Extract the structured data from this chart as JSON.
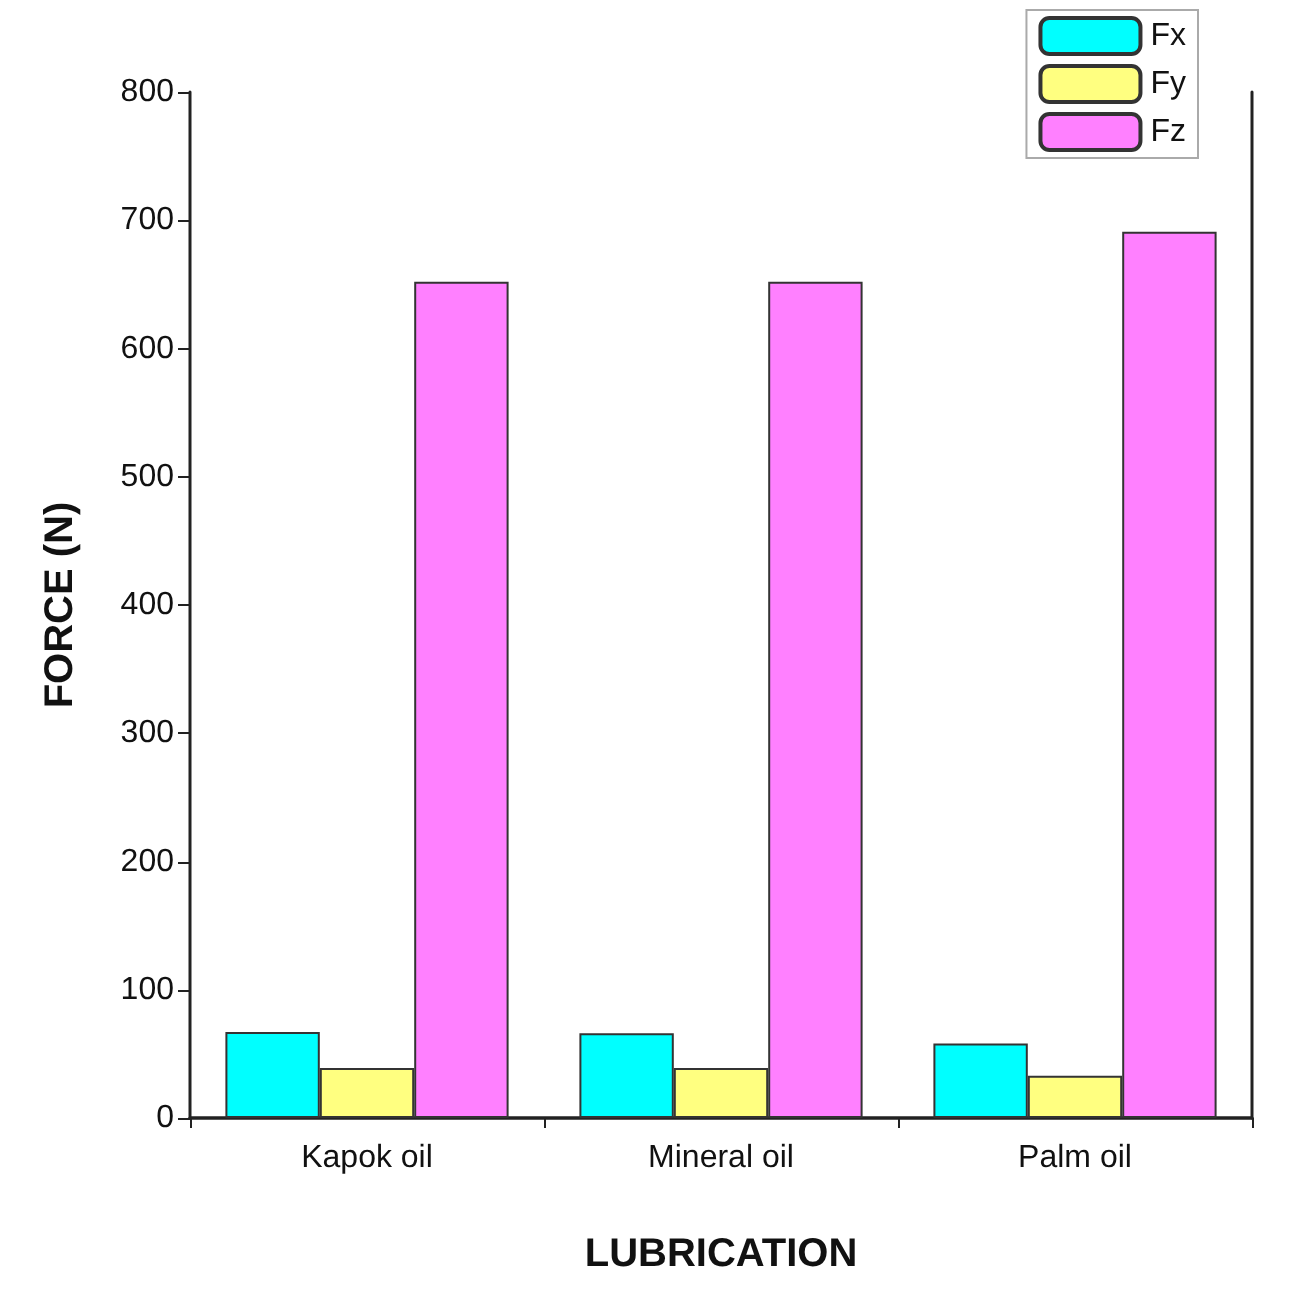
{
  "chart_data": {
    "type": "bar",
    "xlabel": "LUBRICATION",
    "ylabel": "FORCE (N)",
    "categories": [
      "Kapok oil",
      "Mineral oil",
      "Palm oil"
    ],
    "series": [
      {
        "name": "Fx",
        "color": "#00ffff",
        "values": [
          67,
          66,
          58
        ]
      },
      {
        "name": "Fy",
        "color": "#ffff80",
        "values": [
          39,
          39,
          33
        ]
      },
      {
        "name": "Fz",
        "color": "#ff80ff",
        "values": [
          652,
          652,
          691
        ]
      }
    ],
    "ylim": [
      0,
      800
    ],
    "yticks": [
      0,
      100,
      200,
      300,
      400,
      500,
      600,
      700,
      800
    ],
    "grid": false,
    "legend": "top right"
  }
}
